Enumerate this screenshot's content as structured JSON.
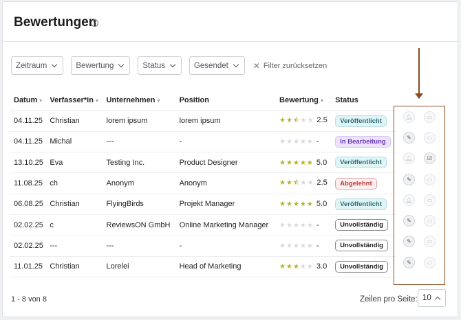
{
  "header": {
    "title": "Bewertungen",
    "help_icon": "?"
  },
  "filters": {
    "items": [
      "Zeitraum",
      "Bewertung",
      "Status",
      "Gesendet"
    ],
    "reset_label": "Filter zurücksetzen"
  },
  "table": {
    "columns": [
      "Datum",
      "Verfasser*in",
      "Unternehmen",
      "Position",
      "Bewertung",
      "Status"
    ],
    "rows": [
      {
        "date": "04.11.25",
        "author": "Christian",
        "company": "lorem ipsum",
        "position": "lorem ipsum",
        "rating": 2.5,
        "rating_label": "2.5",
        "status": "Veröffentlicht",
        "status_kind": "pub",
        "actions": [
          "bell",
          "comment"
        ]
      },
      {
        "date": "04.11.25",
        "author": "Michal",
        "company": "---",
        "position": "-",
        "rating": 0,
        "rating_label": "-",
        "status": "In Bearbeitung",
        "status_kind": "edit",
        "actions": [
          "edit",
          "comment"
        ]
      },
      {
        "date": "13.10.25",
        "author": "Eva",
        "company": "Testing Inc.",
        "position": "Product Designer",
        "rating": 5,
        "rating_label": "5.0",
        "status": "Veröffentlicht",
        "status_kind": "pub",
        "actions": [
          "bell",
          "comment-check"
        ]
      },
      {
        "date": "11.08.25",
        "author": "ch",
        "company": "Anonym",
        "position": "Anonym",
        "rating": 2.5,
        "rating_label": "2.5",
        "status": "Abgelehnt",
        "status_kind": "rej",
        "actions": [
          "edit",
          "comment"
        ]
      },
      {
        "date": "06.08.25",
        "author": "Christian",
        "company": "FlyingBirds",
        "position": "Projekt Manager",
        "rating": 5,
        "rating_label": "5.0",
        "status": "Veröffentlicht",
        "status_kind": "pub",
        "actions": [
          "bell",
          "comment"
        ]
      },
      {
        "date": "02.02.25",
        "author": "c",
        "company": "ReviewsON GmbH",
        "position": "Online Marketing Manager",
        "rating": 0,
        "rating_label": "-",
        "status": "Unvollständig",
        "status_kind": "inc",
        "actions": [
          "edit",
          "comment"
        ]
      },
      {
        "date": "02.02.25",
        "author": "---",
        "company": "---",
        "position": "-",
        "rating": 0,
        "rating_label": "-",
        "status": "Unvollständig",
        "status_kind": "inc",
        "actions": [
          "edit",
          "comment"
        ]
      },
      {
        "date": "11.01.25",
        "author": "Christian",
        "company": "Lorelei",
        "position": "Head of Marketing",
        "rating": 3,
        "rating_label": "3.0",
        "status": "Unvollständig",
        "status_kind": "inc",
        "actions": [
          "edit",
          "comment"
        ]
      }
    ]
  },
  "footer": {
    "range": "1 - 8 von 8",
    "rows_per_page_label": "Zeilen pro Seite:",
    "rows_per_page": "10"
  },
  "colors": {
    "annotation": "#8a4a20",
    "star": "#b7b22a"
  }
}
